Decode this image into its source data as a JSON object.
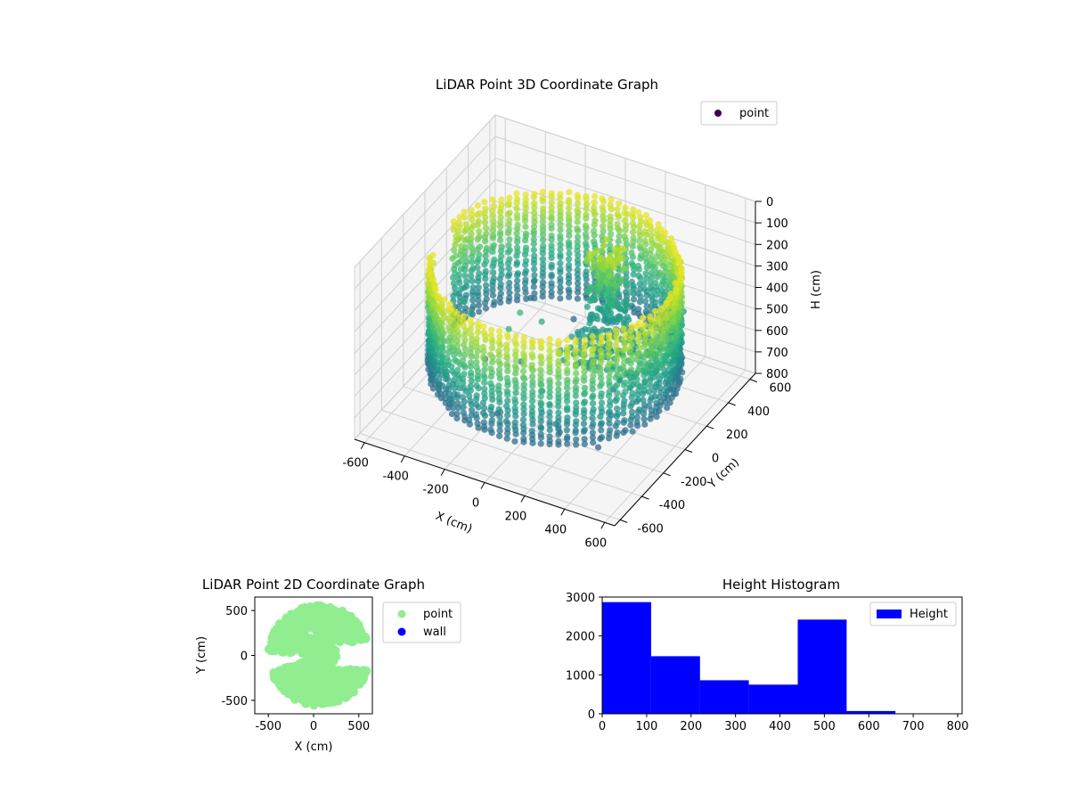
{
  "chart_data": [
    {
      "type": "scatter",
      "title": "LiDAR Point 3D Coordinate Graph",
      "xlabel": "X (cm)",
      "ylabel": "Y (cm)",
      "zlabel": "H (cm)",
      "xlim": [
        -650,
        650
      ],
      "ylim": [
        -650,
        650
      ],
      "zlim": [
        800,
        0
      ],
      "xticks": [
        -600,
        -400,
        -200,
        0,
        200,
        400,
        600
      ],
      "yticks": [
        -600,
        -400,
        -200,
        0,
        200,
        400,
        600
      ],
      "zticks": [
        0,
        100,
        200,
        300,
        400,
        500,
        600,
        700,
        800
      ],
      "grid": true,
      "legend": {
        "position": "upper-right",
        "entries": [
          {
            "label": "point",
            "color": "#440154"
          }
        ]
      },
      "colormap": "viridis",
      "description_of_structure": "cylindrical wall of points at radius ~550 cm spanning roughly -150 to 300 degrees, heights ~150-650 cm, plus interior clusters",
      "clusters": [
        {
          "kind": "wall",
          "radius": 550,
          "theta_start_deg": -160,
          "theta_end_deg": 175,
          "h_min": 150,
          "h_max": 650
        },
        {
          "kind": "column",
          "x": 100,
          "y": 300,
          "h_min": 200,
          "h_max": 500
        },
        {
          "kind": "shelf",
          "x_range": [
            50,
            500
          ],
          "y_range": [
            -100,
            300
          ],
          "h": 500
        }
      ]
    },
    {
      "type": "scatter",
      "title": "LiDAR Point 2D Coordinate Graph",
      "xlabel": "X (cm)",
      "ylabel": "Y (cm)",
      "xlim": [
        -650,
        650
      ],
      "ylim": [
        -650,
        650
      ],
      "xticks": [
        -500,
        0,
        500
      ],
      "yticks": [
        -500,
        0,
        500
      ],
      "legend": {
        "position": "outside-right",
        "entries": [
          {
            "label": "point",
            "color": "#90ee90"
          },
          {
            "label": "wall",
            "color": "#0000ff"
          }
        ]
      },
      "series": [
        {
          "name": "point",
          "color": "#90ee90"
        },
        {
          "name": "wall",
          "color": "#0000ff"
        }
      ]
    },
    {
      "type": "bar",
      "title": "Height Histogram",
      "xlabel": "",
      "ylabel": "",
      "xlim": [
        0,
        810
      ],
      "ylim": [
        0,
        3000
      ],
      "xticks": [
        0,
        100,
        200,
        300,
        400,
        500,
        600,
        700,
        800
      ],
      "yticks": [
        0,
        1000,
        2000,
        3000
      ],
      "bin_edges": [
        0,
        110,
        220,
        330,
        440,
        550,
        660,
        770
      ],
      "values": [
        2870,
        1480,
        860,
        750,
        2420,
        70,
        0
      ],
      "legend": {
        "position": "upper-right",
        "entries": [
          {
            "label": "Height",
            "color": "#0000ff"
          }
        ]
      },
      "series": [
        {
          "name": "Height",
          "color": "#0000ff"
        }
      ]
    }
  ]
}
